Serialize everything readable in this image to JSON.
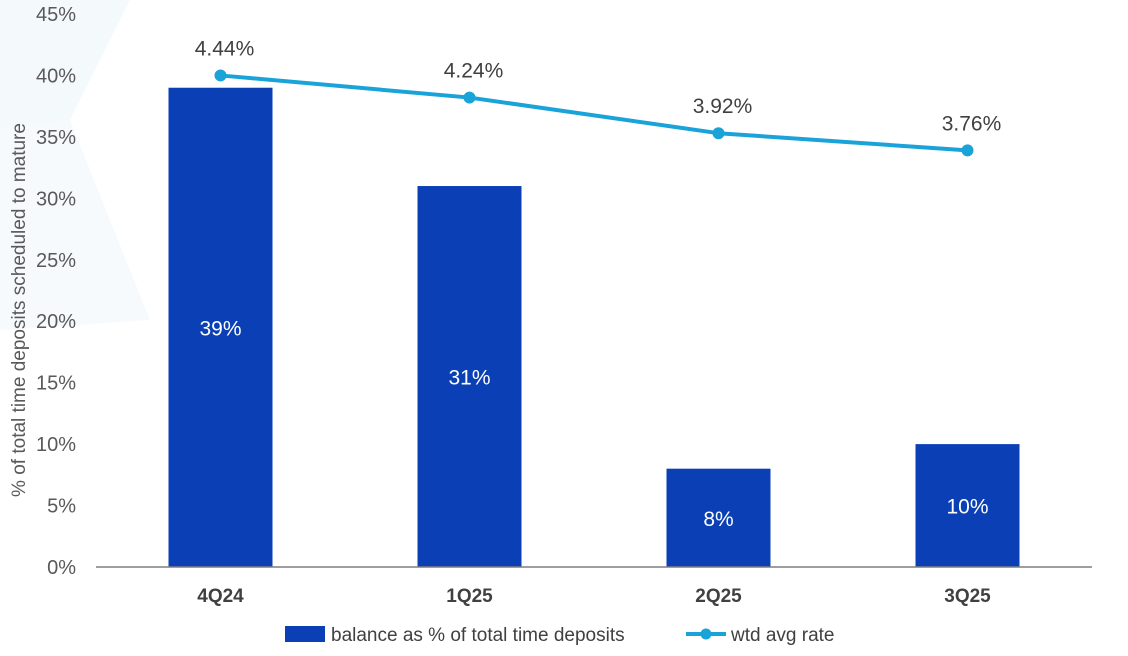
{
  "chart_data": {
    "type": "bar",
    "categories": [
      "4Q24",
      "1Q25",
      "2Q25",
      "3Q25"
    ],
    "ylabel": "% of total time deposits scheduled to mature",
    "ylim": [
      0,
      45
    ],
    "yticks": [
      "0%",
      "5%",
      "10%",
      "15%",
      "20%",
      "25%",
      "30%",
      "35%",
      "40%",
      "45%"
    ],
    "grid": false,
    "legend_position": "bottom",
    "series": [
      {
        "name": "balance as % of total time deposits",
        "type": "bar",
        "values": [
          39,
          31,
          8,
          10
        ],
        "labels": [
          "39%",
          "31%",
          "8%",
          "10%"
        ],
        "color": "#0a3fb5"
      },
      {
        "name": "wtd avg rate",
        "type": "line",
        "values": [
          40,
          38.2,
          35.3,
          33.9
        ],
        "labels": [
          "4.44%",
          "4.24%",
          "3.92%",
          "3.76%"
        ],
        "color": "#1aa3d9"
      }
    ]
  }
}
